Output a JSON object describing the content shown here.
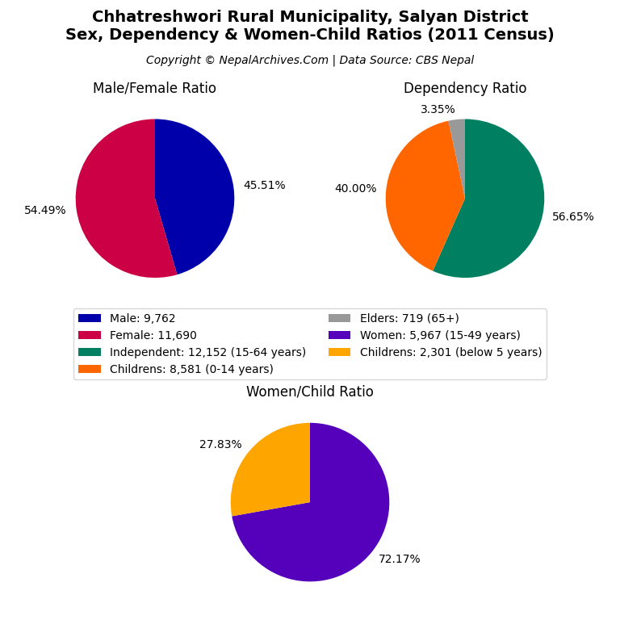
{
  "title": "Chhatreshwori Rural Municipality, Salyan District\nSex, Dependency & Women-Child Ratios (2011 Census)",
  "subtitle": "Copyright © NepalArchives.Com | Data Source: CBS Nepal",
  "legend": "center",
  "chart_data": [
    {
      "type": "pie",
      "title": "Male/Female Ratio",
      "categories": [
        "Male: 9,762",
        "Female: 11,690"
      ],
      "values": [
        45.51,
        54.49
      ],
      "value_labels": [
        "45.51%",
        "54.49%"
      ],
      "colors": [
        "#0000AA",
        "#CC0044"
      ]
    },
    {
      "type": "pie",
      "title": "Dependency Ratio",
      "categories": [
        "Independent: 12,152 (15-64 years)",
        "Childrens: 8,581 (0-14 years)",
        "Elders: 719 (65+)"
      ],
      "values": [
        56.65,
        40.0,
        3.35
      ],
      "value_labels": [
        "56.65%",
        "40.00%",
        "3.35%"
      ],
      "colors": [
        "#008060",
        "#FF6600",
        "#999999"
      ]
    },
    {
      "type": "pie",
      "title": "Women/Child Ratio",
      "categories": [
        "Women: 5,967 (15-49 years)",
        "Childrens: 2,301 (below 5 years)"
      ],
      "values": [
        72.17,
        27.83
      ],
      "value_labels": [
        "72.17%",
        "27.83%"
      ],
      "colors": [
        "#5500BB",
        "#FFA500"
      ]
    }
  ]
}
